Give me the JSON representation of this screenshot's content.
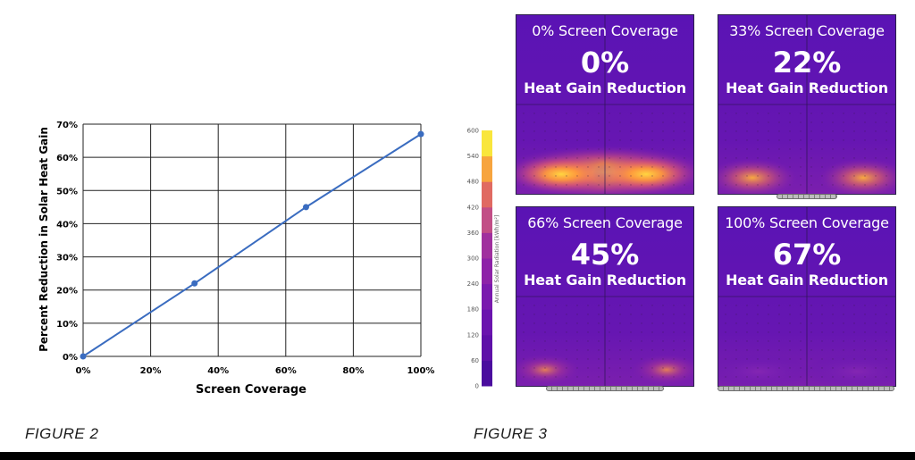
{
  "figure2": {
    "caption": "FIGURE 2",
    "chart_data": {
      "type": "line",
      "title": "",
      "xlabel": "Screen Coverage",
      "ylabel": "Percent Reduction in Solar Heat Gain",
      "xlim": [
        0,
        100
      ],
      "ylim": [
        0,
        70
      ],
      "x_ticks": [
        "0%",
        "20%",
        "40%",
        "60%",
        "80%",
        "100%"
      ],
      "y_ticks": [
        "0%",
        "10%",
        "20%",
        "30%",
        "40%",
        "50%",
        "60%",
        "70%"
      ],
      "grid": true,
      "series": [
        {
          "x": [
            0,
            33,
            66,
            100
          ],
          "y": [
            0,
            22,
            45,
            67
          ]
        }
      ],
      "colors": {
        "line": "#3a6cc0",
        "grid": "#222222"
      }
    }
  },
  "figure3": {
    "caption": "FIGURE 3",
    "legend": {
      "title": "Annual Solar Radiation [kWh/m²]",
      "ticks": [
        "0",
        "60",
        "120",
        "180",
        "240",
        "300",
        "360",
        "420",
        "480",
        "540",
        "600"
      ],
      "colors": [
        "#230c6e",
        "#4a0c9e",
        "#5e10a8",
        "#6a14ae",
        "#7a1aae",
        "#8d22a8",
        "#a0309e",
        "#c24e86",
        "#e06a62",
        "#f7a43e",
        "#f9e63c"
      ]
    },
    "panels": [
      {
        "title": "0% Screen Coverage",
        "value": "0%",
        "subtitle": "Heat Gain Reduction",
        "coverage": 0
      },
      {
        "title": "33% Screen Coverage",
        "value": "22%",
        "subtitle": "Heat Gain Reduction",
        "coverage": 0.33
      },
      {
        "title": "66% Screen Coverage",
        "value": "45%",
        "subtitle": "Heat Gain Reduction",
        "coverage": 0.66
      },
      {
        "title": "100% Screen Coverage",
        "value": "67%",
        "subtitle": "Heat Gain Reduction",
        "coverage": 1
      }
    ]
  }
}
